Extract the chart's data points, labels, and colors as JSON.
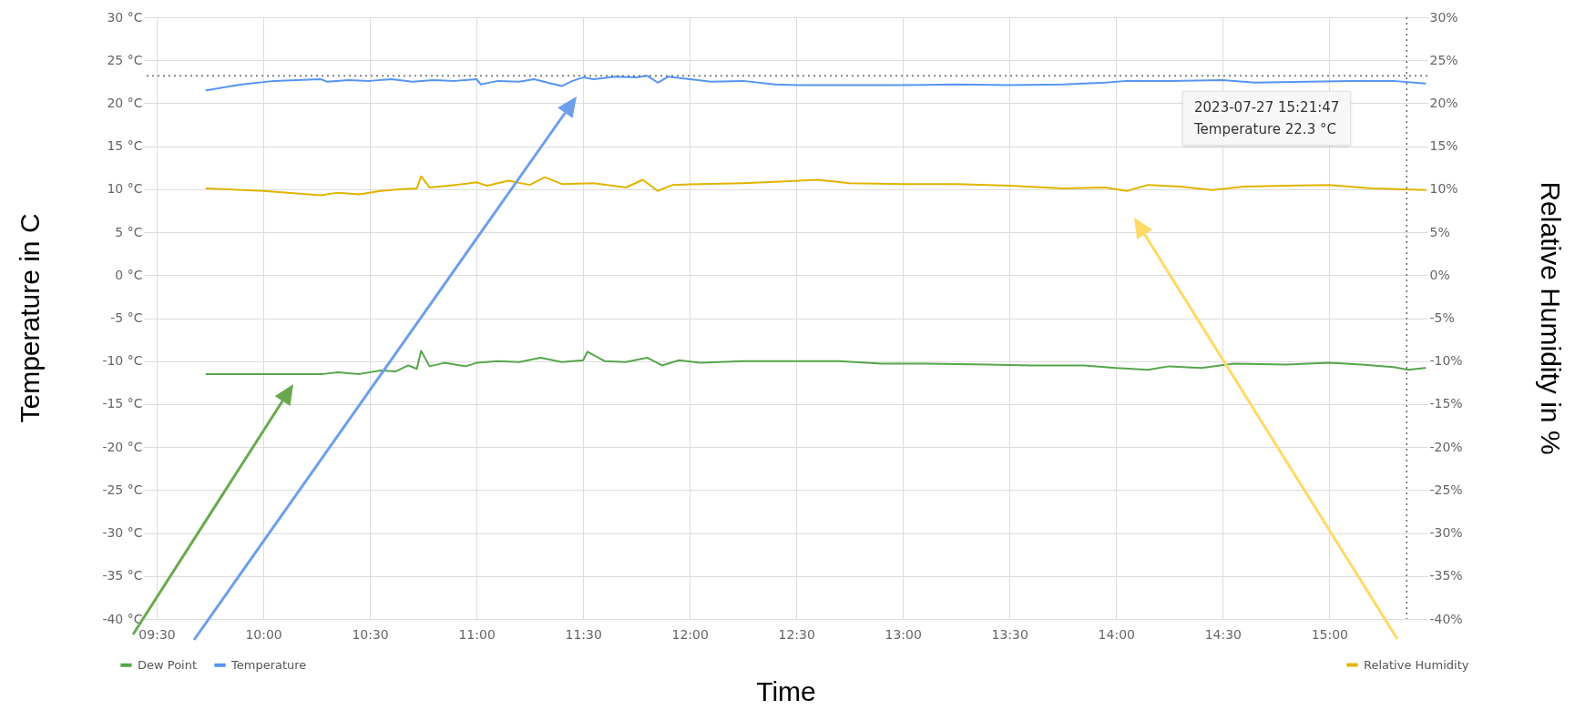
{
  "chart_data": {
    "type": "line",
    "xlabel": "Time",
    "ylabel": "Temperature in C",
    "y2label": "Relative Humidity in %",
    "xlim": [
      9.44,
      15.46
    ],
    "xticks": [
      {
        "value": 9.5,
        "label": "09:30"
      },
      {
        "value": 10,
        "label": "10:00"
      },
      {
        "value": 10.5,
        "label": "10:30"
      },
      {
        "value": 11,
        "label": "11:00"
      },
      {
        "value": 11.5,
        "label": "11:30"
      },
      {
        "value": 12,
        "label": "12:00"
      },
      {
        "value": 12.5,
        "label": "12:30"
      },
      {
        "value": 13,
        "label": "13:00"
      },
      {
        "value": 13.5,
        "label": "13:30"
      },
      {
        "value": 14,
        "label": "14:00"
      },
      {
        "value": 14.5,
        "label": "14:30"
      },
      {
        "value": 15,
        "label": "15:00"
      }
    ],
    "ylim": [
      -40,
      30
    ],
    "yticks": [
      {
        "value": -40,
        "label": "-40 °C"
      },
      {
        "value": -35,
        "label": "-35 °C"
      },
      {
        "value": -30,
        "label": "-30 °C"
      },
      {
        "value": -25,
        "label": "-25 °C"
      },
      {
        "value": -20,
        "label": "-20 °C"
      },
      {
        "value": -15,
        "label": "-15 °C"
      },
      {
        "value": -10,
        "label": "-10 °C"
      },
      {
        "value": -5,
        "label": "-5 °C"
      },
      {
        "value": 0,
        "label": "0 °C"
      },
      {
        "value": 5,
        "label": "5 °C"
      },
      {
        "value": 10,
        "label": "10 °C"
      },
      {
        "value": 15,
        "label": "15 °C"
      },
      {
        "value": 20,
        "label": "20 °C"
      },
      {
        "value": 25,
        "label": "25 °C"
      },
      {
        "value": 30,
        "label": "30 °C"
      }
    ],
    "y2lim": [
      -40,
      30
    ],
    "y2ticks": [
      {
        "value": -40,
        "label": "-40%"
      },
      {
        "value": -35,
        "label": "-35%"
      },
      {
        "value": -30,
        "label": "-30%"
      },
      {
        "value": -25,
        "label": "-25%"
      },
      {
        "value": -20,
        "label": "-20%"
      },
      {
        "value": -15,
        "label": "-15%"
      },
      {
        "value": -10,
        "label": "-10%"
      },
      {
        "value": -5,
        "label": "-5%"
      },
      {
        "value": 0,
        "label": "0%"
      },
      {
        "value": 5,
        "label": "5%"
      },
      {
        "value": 10,
        "label": "10%"
      },
      {
        "value": 15,
        "label": "15%"
      },
      {
        "value": 20,
        "label": "20%"
      },
      {
        "value": 25,
        "label": "25%"
      },
      {
        "value": 30,
        "label": "30%"
      }
    ],
    "grid": true,
    "legend": "bottom",
    "line_style": "solid",
    "annotations": [
      "2023-07-27 15:21:47",
      "Temperature 22.3 °C"
    ],
    "ref_lines": [
      {
        "axis": "x",
        "value": 15.363,
        "line_style": "dotted",
        "color": "#666666"
      },
      {
        "axis": "y",
        "value": 23.2,
        "line_style": "dotted",
        "color": "#666666"
      }
    ],
    "series": [
      {
        "name": "Dew Point",
        "color": "#56a64b",
        "x": [
          9.733,
          10.28,
          10.35,
          10.45,
          10.55,
          10.62,
          10.68,
          10.72,
          10.74,
          10.78,
          10.85,
          10.95,
          11.0,
          11.1,
          11.2,
          11.3,
          11.4,
          11.5,
          11.52,
          11.6,
          11.7,
          11.8,
          11.87,
          11.95,
          12.05,
          12.25,
          12.5,
          12.7,
          12.9,
          13.1,
          13.4,
          13.6,
          13.85,
          14.0,
          14.15,
          14.25,
          14.4,
          14.55,
          14.8,
          15.0,
          15.15,
          15.3,
          15.37,
          15.45
        ],
        "values": [
          -11.5,
          -11.5,
          -11.3,
          -11.5,
          -11.1,
          -11.2,
          -10.5,
          -10.9,
          -8.8,
          -10.6,
          -10.2,
          -10.6,
          -10.2,
          -10.0,
          -10.1,
          -9.6,
          -10.1,
          -9.9,
          -8.9,
          -10.0,
          -10.1,
          -9.6,
          -10.5,
          -9.9,
          -10.2,
          -10.0,
          -10.0,
          -10.0,
          -10.3,
          -10.3,
          -10.4,
          -10.5,
          -10.5,
          -10.8,
          -11.0,
          -10.6,
          -10.8,
          -10.3,
          -10.4,
          -10.2,
          -10.4,
          -10.7,
          -11.0,
          -10.8
        ]
      },
      {
        "name": "Temperature",
        "color": "#5794f2",
        "x": [
          9.733,
          9.9,
          10.05,
          10.27,
          10.3,
          10.4,
          10.5,
          10.6,
          10.7,
          10.8,
          10.9,
          11.0,
          11.02,
          11.1,
          11.2,
          11.27,
          11.35,
          11.4,
          11.45,
          11.5,
          11.55,
          11.65,
          11.75,
          11.8,
          11.85,
          11.9,
          12.0,
          12.1,
          12.25,
          12.4,
          12.5,
          12.75,
          13.0,
          13.25,
          13.5,
          13.75,
          13.95,
          14.05,
          14.25,
          14.5,
          14.65,
          14.9,
          15.1,
          15.3,
          15.45
        ],
        "values": [
          21.5,
          22.2,
          22.6,
          22.8,
          22.5,
          22.7,
          22.6,
          22.8,
          22.5,
          22.7,
          22.6,
          22.8,
          22.2,
          22.6,
          22.5,
          22.8,
          22.3,
          22.0,
          22.6,
          23.0,
          22.8,
          23.1,
          23.0,
          23.2,
          22.4,
          23.1,
          22.8,
          22.5,
          22.6,
          22.2,
          22.1,
          22.1,
          22.1,
          22.2,
          22.1,
          22.2,
          22.4,
          22.6,
          22.6,
          22.7,
          22.4,
          22.5,
          22.6,
          22.6,
          22.3
        ]
      },
      {
        "name": "Relative Humidity",
        "color": "#e0b400",
        "axis": "y2",
        "x": [
          9.733,
          10.0,
          10.27,
          10.35,
          10.45,
          10.55,
          10.65,
          10.72,
          10.74,
          10.78,
          10.9,
          11.0,
          11.05,
          11.15,
          11.25,
          11.32,
          11.4,
          11.55,
          11.7,
          11.78,
          11.85,
          11.92,
          12.05,
          12.25,
          12.45,
          12.6,
          12.75,
          13.0,
          13.25,
          13.5,
          13.75,
          13.95,
          14.05,
          14.15,
          14.3,
          14.45,
          14.6,
          14.8,
          15.0,
          15.2,
          15.45
        ],
        "values": [
          10.1,
          9.8,
          9.3,
          9.6,
          9.4,
          9.8,
          10.0,
          10.1,
          11.5,
          10.2,
          10.5,
          10.8,
          10.4,
          11.0,
          10.5,
          11.4,
          10.6,
          10.7,
          10.2,
          11.1,
          9.8,
          10.5,
          10.6,
          10.7,
          10.9,
          11.1,
          10.7,
          10.6,
          10.6,
          10.4,
          10.1,
          10.2,
          9.8,
          10.5,
          10.3,
          9.9,
          10.3,
          10.4,
          10.5,
          10.1,
          9.9
        ]
      }
    ]
  }
}
